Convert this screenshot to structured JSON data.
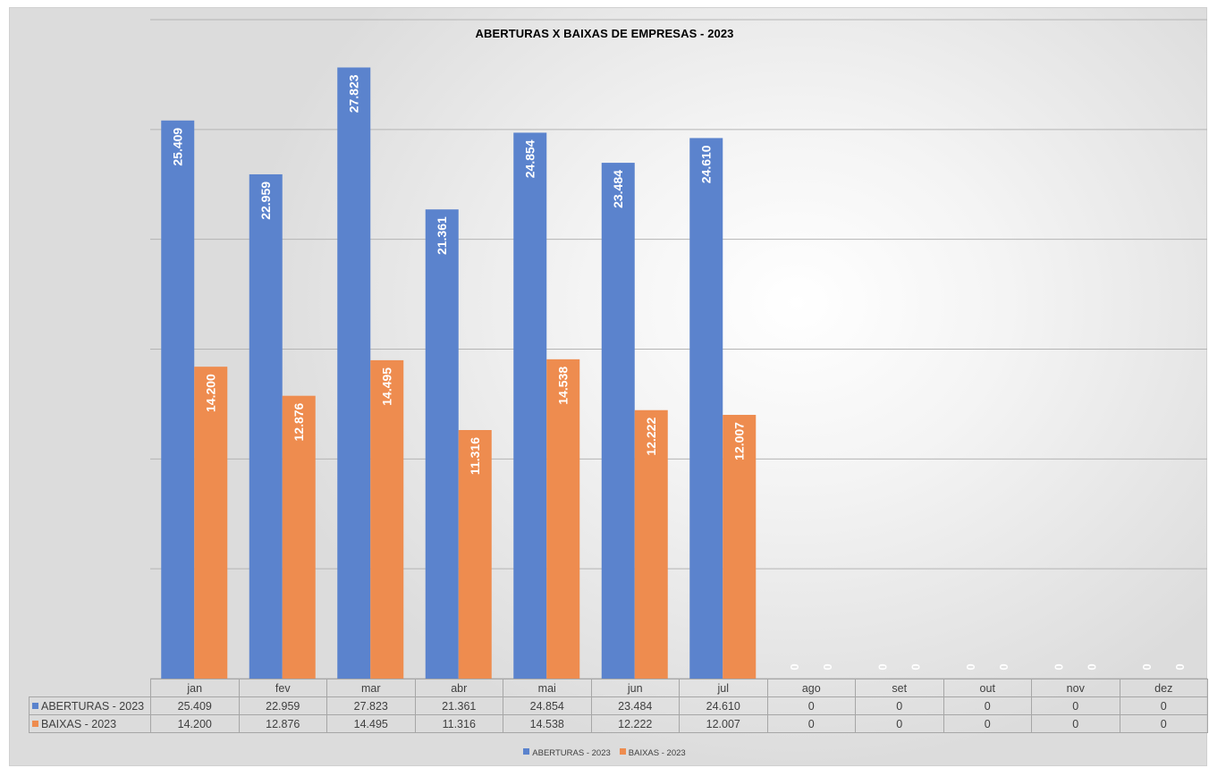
{
  "chart_data": {
    "type": "bar",
    "title": "ABERTURAS X BAIXAS DE EMPRESAS - 2023",
    "categories": [
      "jan",
      "fev",
      "mar",
      "abr",
      "mai",
      "jun",
      "jul",
      "ago",
      "set",
      "out",
      "nov",
      "dez"
    ],
    "series": [
      {
        "name": "ABERTURAS - 2023",
        "color": "#5b83cd",
        "values": [
          25409,
          22959,
          27823,
          21361,
          24854,
          23484,
          24610,
          0,
          0,
          0,
          0,
          0
        ],
        "labels": [
          "25.409",
          "22.959",
          "27.823",
          "21.361",
          "24.854",
          "23.484",
          "24.610",
          "0",
          "0",
          "0",
          "0",
          "0"
        ]
      },
      {
        "name": "BAIXAS - 2023",
        "color": "#ee8c4f",
        "values": [
          14200,
          12876,
          14495,
          11316,
          14538,
          12222,
          12007,
          0,
          0,
          0,
          0,
          0
        ],
        "labels": [
          "14.200",
          "12.876",
          "14.495",
          "11.316",
          "14.538",
          "12.222",
          "12.007",
          "0",
          "0",
          "0",
          "0",
          "0"
        ]
      }
    ],
    "ylim": [
      0,
      30000
    ],
    "y_axis_labels_shown": false,
    "grid": true,
    "data_table": true,
    "legend_position": "bottom"
  }
}
